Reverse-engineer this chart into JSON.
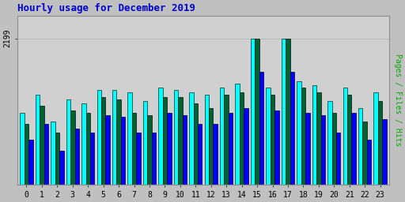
{
  "title": "Hourly usage for December 2019",
  "hours": [
    0,
    1,
    2,
    3,
    4,
    5,
    6,
    7,
    8,
    9,
    10,
    11,
    12,
    13,
    14,
    15,
    16,
    17,
    18,
    19,
    20,
    21,
    22,
    23
  ],
  "pages": [
    1820,
    1900,
    1780,
    1880,
    1870,
    1940,
    1930,
    1870,
    1860,
    1940,
    1940,
    1910,
    1890,
    1950,
    1960,
    2199,
    1950,
    2199,
    1980,
    1960,
    1870,
    1950,
    1830,
    1920
  ],
  "files": [
    1870,
    1950,
    1830,
    1930,
    1910,
    1970,
    1970,
    1960,
    1920,
    1980,
    1970,
    1960,
    1950,
    1980,
    2000,
    2199,
    1980,
    2199,
    2010,
    1990,
    1920,
    1980,
    1890,
    1960
  ],
  "hits": [
    1750,
    1820,
    1700,
    1800,
    1780,
    1860,
    1850,
    1780,
    1780,
    1870,
    1860,
    1820,
    1820,
    1870,
    1890,
    2050,
    1880,
    2050,
    1870,
    1860,
    1780,
    1870,
    1750,
    1840
  ],
  "color_pages": "#006030",
  "color_files": "#00ffff",
  "color_hits": "#0000ff",
  "bg_color": "#c0c0c0",
  "plot_bg": "#d0d0d0",
  "ylabel_right": "Pages / Files / Hits",
  "ymax": 2300,
  "ymin": 1550,
  "ytick_label": "2199",
  "title_color": "#0000cc",
  "ylabel_color": "#00aa00",
  "bar_width": 0.28,
  "figsize": [
    5.12,
    2.56
  ],
  "dpi": 100
}
